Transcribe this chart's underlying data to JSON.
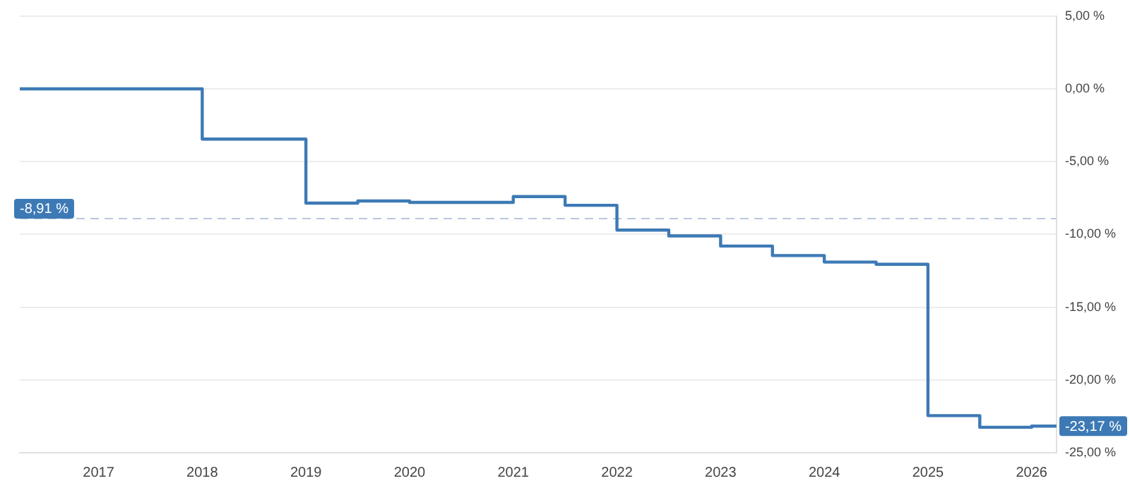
{
  "chart_data": {
    "type": "step",
    "x": [
      2016.24,
      2018.0,
      2019.0,
      2019.5,
      2020.0,
      2021.0,
      2021.5,
      2022.0,
      2022.5,
      2023.0,
      2023.5,
      2024.0,
      2024.5,
      2025.0,
      2025.5,
      2026.0,
      2026.24
    ],
    "series": [
      {
        "color": "#3d7ab5",
        "values": [
          0.0,
          -3.45,
          -7.85,
          -7.7,
          -7.8,
          -7.4,
          -8.0,
          -9.7,
          -10.1,
          -10.8,
          -11.45,
          -11.9,
          -12.05,
          -22.45,
          -23.25,
          -23.17,
          -23.17
        ]
      }
    ],
    "xlim": [
      2016.24,
      2026.24
    ],
    "xticks": [
      2017,
      2018,
      2019,
      2020,
      2021,
      2022,
      2023,
      2024,
      2025,
      2026
    ],
    "ylim": [
      -25,
      5
    ],
    "yticks": [
      {
        "value": 5,
        "label": "5,00 %"
      },
      {
        "value": 0,
        "label": "0,00 %"
      },
      {
        "value": -5,
        "label": "-5,00 %"
      },
      {
        "value": -10,
        "label": "-10,00 %"
      },
      {
        "value": -15,
        "label": "-15,00 %"
      },
      {
        "value": -20,
        "label": "-20,00 %"
      },
      {
        "value": -25,
        "label": "-25,00 %"
      }
    ],
    "ref_lines": [
      {
        "axis": "y",
        "value": -8.91,
        "label": "-8,91 %",
        "color": "#b8c8dc",
        "line_style": "dashed"
      }
    ],
    "annotations": [
      {
        "text": "-23,17 %",
        "x": 2026.24,
        "y": -23.17
      }
    ],
    "grid": "y",
    "legend": false,
    "marker": "none",
    "line_style": "solid"
  }
}
